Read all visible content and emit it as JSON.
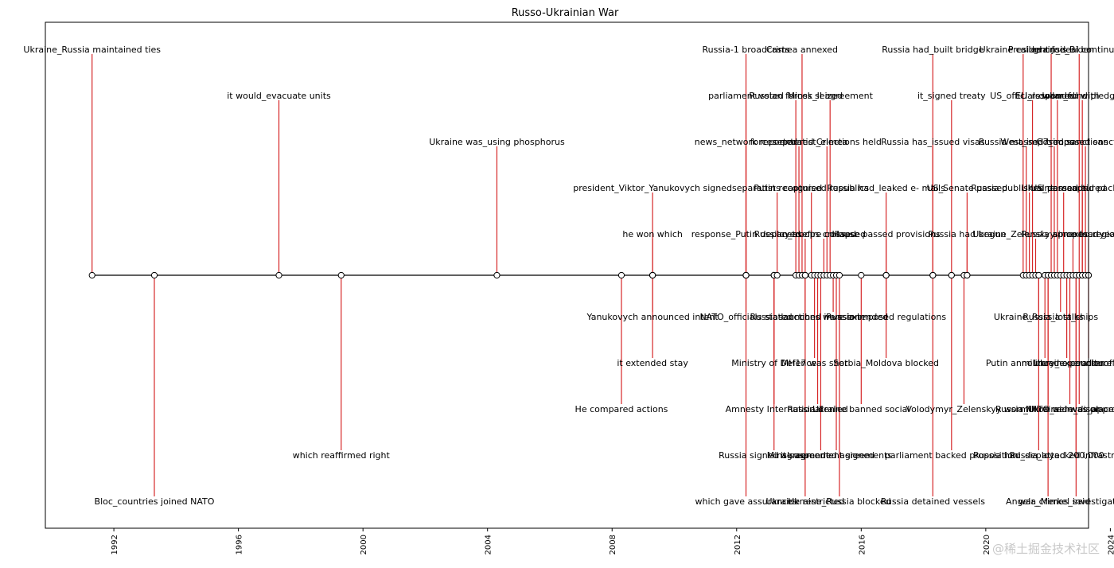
{
  "chart_data": {
    "type": "timeline",
    "title": "Russo-Ukrainian War",
    "xlim": [
      1989.8,
      2023.3
    ],
    "xticks": [
      "1992",
      "1996",
      "2000",
      "2004",
      "2008",
      "2012",
      "2016",
      "2020",
      "2024"
    ],
    "stem_color": "#d62728",
    "axis_line_color": "#000000",
    "events": [
      {
        "year": 1991.3,
        "label": "Ukraine_Russia maintained ties",
        "level": 5
      },
      {
        "year": 1993.3,
        "label": "Bloc_countries joined NATO",
        "level": -5
      },
      {
        "year": 1997.3,
        "label": "it would_evacuate units",
        "level": 4
      },
      {
        "year": 1999.3,
        "label": "which reaffirmed right",
        "level": -4
      },
      {
        "year": 2004.3,
        "label": "Ukraine was_using phosphorus",
        "level": 3
      },
      {
        "year": 2008.3,
        "label": "He compared actions",
        "level": -3
      },
      {
        "year": 2009.3,
        "label": "president_Viktor_Yanukovych signed",
        "level": 2
      },
      {
        "year": 2009.3,
        "label": "he won which",
        "level": 1
      },
      {
        "year": 2009.3,
        "label": "Yanukovych announced intent",
        "level": -1
      },
      {
        "year": 2009.3,
        "label": "it extended stay",
        "level": -2
      },
      {
        "year": 2012.3,
        "label": "Russia-1 broadcasts",
        "level": 5
      },
      {
        "year": 2012.3,
        "label": "parliament voted",
        "level": 4
      },
      {
        "year": 2012.3,
        "label": "news_network reported",
        "level": 3
      },
      {
        "year": 2012.3,
        "label": "response_Putin deployed",
        "level": 1
      },
      {
        "year": 2012.3,
        "label": "NATO_officials stated",
        "level": -1
      },
      {
        "year": 2012.3,
        "label": "which gave assurances",
        "level": -5
      },
      {
        "year": 2013.2,
        "label": "Ministry of Defence",
        "level": -2
      },
      {
        "year": 2013.2,
        "label": "Amnesty International",
        "level": -3
      },
      {
        "year": 2013.2,
        "label": "Russia signed agreement",
        "level": -4
      },
      {
        "year": 2013.3,
        "label": "separatists captured",
        "level": 2
      },
      {
        "year": 2013.9,
        "label": "Russian forces seized",
        "level": 4
      },
      {
        "year": 2014.0,
        "label": "forces entered Crimea",
        "level": 3
      },
      {
        "year": 2014.1,
        "label": "Crimea annexed",
        "level": 5
      },
      {
        "year": 2014.2,
        "label": "Russian_troops crossed",
        "level": 1
      },
      {
        "year": 2014.2,
        "label": "Russia launched invasion",
        "level": -1
      },
      {
        "year": 2014.2,
        "label": "Ukraine restricted",
        "level": -5
      },
      {
        "year": 2014.4,
        "label": "Putin recognised republics",
        "level": 2
      },
      {
        "year": 2014.5,
        "label": "MH17 was shot",
        "level": -2
      },
      {
        "year": 2014.6,
        "label": "Russia denied",
        "level": -3
      },
      {
        "year": 2014.7,
        "label": "Minsk agreement signed",
        "level": -4
      },
      {
        "year": 2014.8,
        "label": "ceasefire collapsed",
        "level": 1
      },
      {
        "year": 2014.9,
        "label": "separatist_elections held",
        "level": 3
      },
      {
        "year": 2015.0,
        "label": "Minsk_II agreement",
        "level": 4
      },
      {
        "year": 2015.1,
        "label": "sanctions were extended",
        "level": -1
      },
      {
        "year": 2015.2,
        "label": "it suspended agreements",
        "level": -4
      },
      {
        "year": 2015.3,
        "label": "Ukraine_Russia blocked",
        "level": -5
      },
      {
        "year": 2016.0,
        "label": "Ukraine banned social",
        "level": -3
      },
      {
        "year": 2016.8,
        "label": "Russia had_leaked e- mails",
        "level": 2
      },
      {
        "year": 2016.8,
        "label": "House passed provisions",
        "level": 1
      },
      {
        "year": 2016.8,
        "label": "Russia imposed regulations",
        "level": -1
      },
      {
        "year": 2016.8,
        "label": "Serbia_Moldova blocked",
        "level": -2
      },
      {
        "year": 2018.3,
        "label": "Russia had_built bridge",
        "level": 5
      },
      {
        "year": 2018.3,
        "label": "Russia has_issued visas",
        "level": 3
      },
      {
        "year": 2018.3,
        "label": "Russia detained vessels",
        "level": -5
      },
      {
        "year": 2018.9,
        "label": "it_signed treaty",
        "level": 4
      },
      {
        "year": 2018.9,
        "label": "parliament backed proposition",
        "level": -4
      },
      {
        "year": 2019.3,
        "label": "Volodymyr_Zelenskyy won",
        "level": -3
      },
      {
        "year": 2019.4,
        "label": "US_Senate passed",
        "level": 2
      },
      {
        "year": 2019.4,
        "label": "Russia had begun",
        "level": 1
      },
      {
        "year": 2021.2,
        "label": "Ukraine called crisis",
        "level": 5
      },
      {
        "year": 2021.3,
        "label": "Russia massed troops",
        "level": 3
      },
      {
        "year": 2021.4,
        "label": "Russia published demands",
        "level": 2
      },
      {
        "year": 2021.5,
        "label": "US_officials warned",
        "level": 4
      },
      {
        "year": 2021.6,
        "label": "Ukraine_Zelenskyy proposed",
        "level": 1
      },
      {
        "year": 2021.7,
        "label": "Ukraine_Russia talks",
        "level": -1
      },
      {
        "year": 2021.7,
        "label": "Russia had_deployed 200,000",
        "level": -4
      },
      {
        "year": 2021.9,
        "label": "Putin announced operation",
        "level": -2
      },
      {
        "year": 2022.0,
        "label": "Russia_Ukraine invasion",
        "level": -3
      },
      {
        "year": 2022.0,
        "label": "Angela_Merkel said",
        "level": -5
      },
      {
        "year": 2022.1,
        "label": "President Joe_Biden",
        "level": 5
      },
      {
        "year": 2022.2,
        "label": "West_imposed sanctions",
        "level": 3
      },
      {
        "year": 2022.3,
        "label": "EU_responded with",
        "level": 4
      },
      {
        "year": 2022.4,
        "label": "Russia_lost_ships",
        "level": -1
      },
      {
        "year": 2022.5,
        "label": "Ukraine recaptured",
        "level": 2
      },
      {
        "year": 2022.6,
        "label": "military_expenditure",
        "level": -2
      },
      {
        "year": 2022.7,
        "label": "million were_displaced",
        "level": -3
      },
      {
        "year": 2022.8,
        "label": "Russia annexed regions",
        "level": 1
      },
      {
        "year": 2022.9,
        "label": "war_crimes_investigations",
        "level": -5
      },
      {
        "year": 2022.9,
        "label": "Russia_attacked infrastructure",
        "level": -4
      },
      {
        "year": 2023.0,
        "label": "grain_deal continued",
        "level": 5
      },
      {
        "year": 2023.0,
        "label": "NATO_aid was_approved",
        "level": -3
      },
      {
        "year": 2023.1,
        "label": "dollar_fund pledged",
        "level": 4
      },
      {
        "year": 2023.1,
        "label": "US_passed aid package",
        "level": 2
      },
      {
        "year": 2023.2,
        "label": "G7_imposed sanctions",
        "level": 3
      },
      {
        "year": 2023.3,
        "label": "Ukraine counteroffensive",
        "level": -2
      },
      {
        "year": 2023.3,
        "label": "since four years",
        "level": 1
      }
    ]
  },
  "watermark": "@稀土掘金技术社区"
}
